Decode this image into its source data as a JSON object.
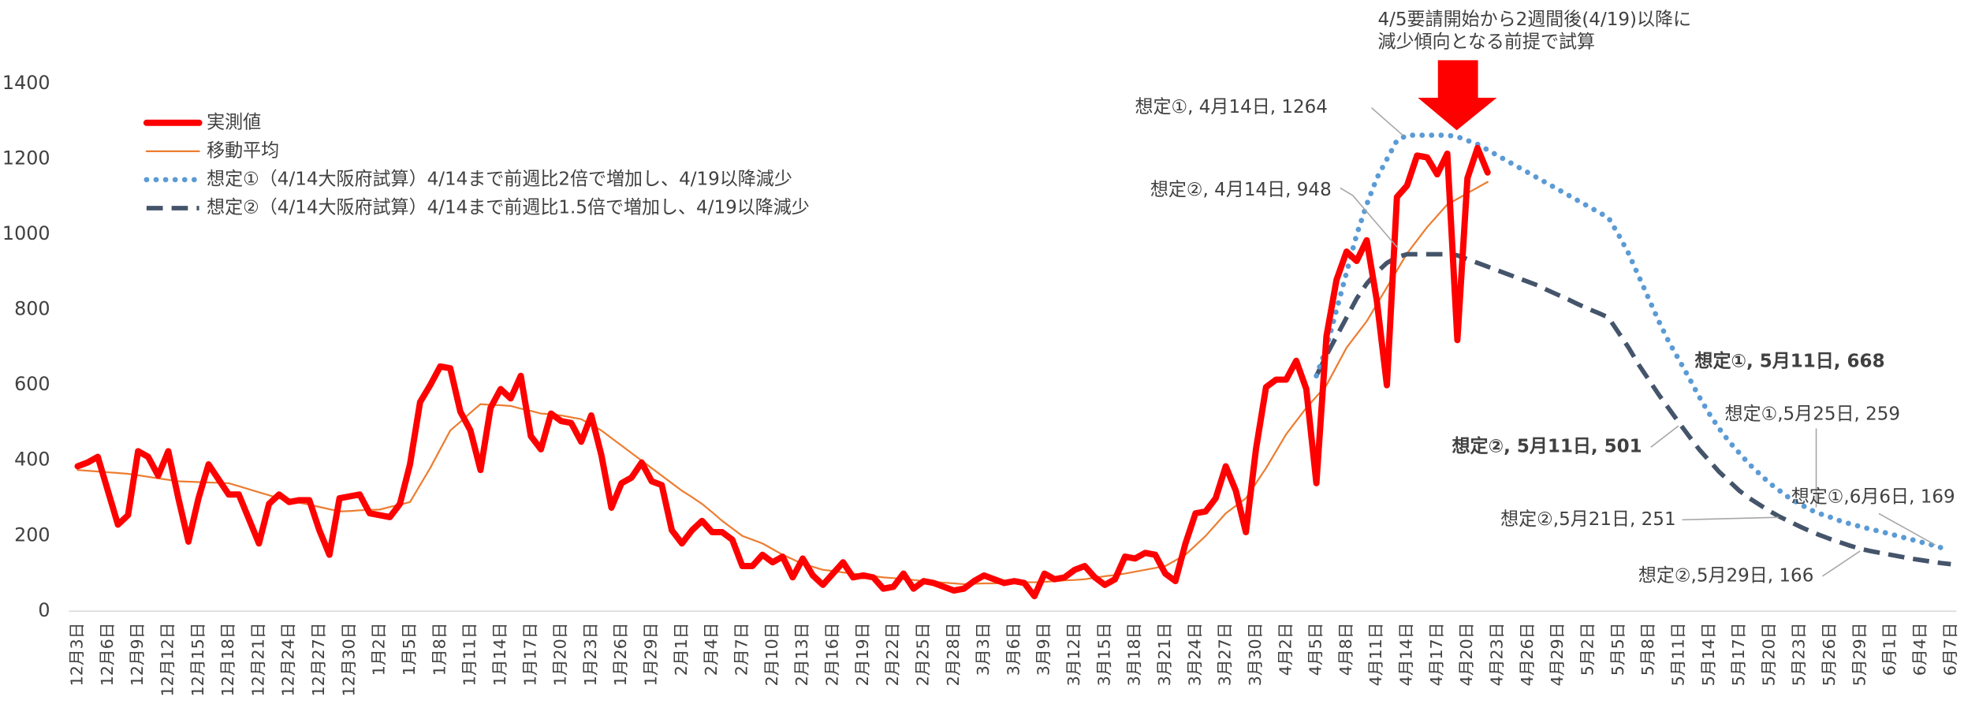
{
  "chart_data": {
    "type": "line",
    "categories": [
      "12月3日",
      null,
      null,
      "12月6日",
      null,
      null,
      "12月9日",
      null,
      null,
      "12月12日",
      null,
      null,
      "12月15日",
      null,
      null,
      "12月18日",
      null,
      null,
      "12月21日",
      null,
      null,
      "12月24日",
      null,
      null,
      "12月27日",
      null,
      null,
      "12月30日",
      null,
      null,
      "1月2日",
      null,
      null,
      "1月5日",
      null,
      null,
      "1月8日",
      null,
      null,
      "1月11日",
      null,
      null,
      "1月14日",
      null,
      null,
      "1月17日",
      null,
      null,
      "1月20日",
      null,
      null,
      "1月23日",
      null,
      null,
      "1月26日",
      null,
      null,
      "1月29日",
      null,
      null,
      "2月1日",
      null,
      null,
      "2月4日",
      null,
      null,
      "2月7日",
      null,
      null,
      "2月10日",
      null,
      null,
      "2月13日",
      null,
      null,
      "2月16日",
      null,
      null,
      "2月19日",
      null,
      null,
      "2月22日",
      null,
      null,
      "2月25日",
      null,
      null,
      "2月28日",
      null,
      null,
      "3月3日",
      null,
      null,
      "3月6日",
      null,
      null,
      "3月9日",
      null,
      null,
      "3月12日",
      null,
      null,
      "3月15日",
      null,
      null,
      "3月18日",
      null,
      null,
      "3月21日",
      null,
      null,
      "3月24日",
      null,
      null,
      "3月27日",
      null,
      null,
      "3月30日",
      null,
      null,
      "4月2日",
      null,
      null,
      "4月5日",
      null,
      null,
      "4月8日",
      null,
      null,
      "4月11日",
      null,
      null,
      "4月14日",
      null,
      null,
      "4月17日",
      null,
      null,
      "4月20日",
      null,
      null,
      "4月23日",
      null,
      null,
      "4月26日",
      null,
      null,
      "4月29日",
      null,
      null,
      "5月2日",
      null,
      null,
      "5月5日",
      null,
      null,
      "5月8日",
      null,
      null,
      "5月11日",
      null,
      null,
      "5月14日",
      null,
      null,
      "5月17日",
      null,
      null,
      "5月20日",
      null,
      null,
      "5月23日",
      null,
      null,
      "5月26日",
      null,
      null,
      "5月29日",
      null,
      null,
      "6月1日",
      null,
      null,
      "6月4日",
      null,
      null,
      "6月7日"
    ],
    "series": [
      {
        "name": "実測値",
        "color": "#ff0000",
        "line_style": "thick",
        "values": [
          385,
          395,
          410,
          320,
          230,
          255,
          425,
          410,
          360,
          425,
          300,
          185,
          300,
          390,
          350,
          310,
          310,
          245,
          180,
          285,
          310,
          290,
          295,
          295,
          215,
          150,
          300,
          305,
          310,
          260,
          255,
          250,
          285,
          390,
          555,
          600,
          650,
          645,
          530,
          480,
          375,
          540,
          590,
          565,
          625,
          465,
          430,
          525,
          505,
          500,
          450,
          520,
          415,
          275,
          340,
          355,
          395,
          345,
          335,
          215,
          180,
          215,
          240,
          210,
          210,
          190,
          120,
          120,
          150,
          130,
          145,
          90,
          140,
          95,
          70,
          100,
          130,
          90,
          95,
          90,
          60,
          65,
          100,
          60,
          80,
          75,
          65,
          55,
          60,
          80,
          95,
          85,
          75,
          80,
          75,
          40,
          100,
          85,
          90,
          110,
          120,
          90,
          70,
          85,
          145,
          140,
          155,
          150,
          100,
          80,
          180,
          260,
          265,
          300,
          385,
          320,
          210,
          430,
          595,
          615,
          615,
          665,
          590,
          340,
          730,
          880,
          955,
          930,
          985,
          825,
          600,
          1100,
          1130,
          1210,
          1205,
          1160,
          1215,
          720,
          1150,
          1230,
          1165,
          null,
          null,
          null,
          null,
          null,
          null,
          null,
          null,
          null,
          null,
          null,
          null,
          null,
          null,
          null,
          null,
          null,
          null,
          null,
          null,
          null,
          null,
          null,
          null,
          null,
          null,
          null,
          null,
          null,
          null,
          null,
          null,
          null,
          null,
          null,
          null,
          null,
          null,
          null,
          null,
          null,
          null,
          null,
          null,
          null,
          null
        ]
      },
      {
        "name": "移動平均",
        "color": "#ed7d31",
        "line_style": "thin",
        "values": [
          375,
          373,
          371,
          369,
          367,
          365,
          361,
          357,
          353,
          349,
          345,
          344,
          343,
          342,
          341,
          340,
          332,
          324,
          316,
          308,
          300,
          294,
          288,
          283,
          277,
          271,
          265,
          266,
          268,
          269,
          270,
          277,
          283,
          290,
          335,
          380,
          430,
          480,
          503,
          527,
          550,
          548,
          547,
          545,
          538,
          532,
          525,
          523,
          520,
          515,
          510,
          495,
          480,
          460,
          440,
          420,
          400,
          380,
          360,
          340,
          320,
          303,
          285,
          263,
          240,
          220,
          200,
          190,
          180,
          165,
          150,
          138,
          125,
          118,
          110,
          107,
          103,
          100,
          97,
          93,
          90,
          88,
          85,
          83,
          80,
          78,
          76,
          74,
          72,
          73,
          74,
          74,
          75,
          76,
          77,
          77,
          78,
          80,
          82,
          83,
          85,
          89,
          93,
          96,
          100,
          105,
          110,
          115,
          120,
          135,
          150,
          175,
          200,
          230,
          260,
          280,
          300,
          340,
          380,
          425,
          470,
          505,
          540,
          570,
          600,
          650,
          700,
          735,
          770,
          815,
          860,
          905,
          950,
          985,
          1020,
          1050,
          1080,
          1095,
          1110,
          1125,
          1140,
          null,
          null,
          null,
          null,
          null,
          null,
          null,
          null,
          null,
          null,
          null,
          null,
          null,
          null,
          null,
          null,
          null,
          null,
          null,
          null,
          null,
          null,
          null,
          null,
          null,
          null,
          null,
          null,
          null,
          null,
          null,
          null,
          null,
          null,
          null,
          null,
          null,
          null,
          null,
          null,
          null,
          null,
          null,
          null,
          null,
          null
        ]
      },
      {
        "name": "想定①（4/14大阪府試算）4/14まで前週比2倍で増加し、4/19以降減少",
        "color": "#5b9bd5",
        "line_style": "dotted",
        "values": [
          null,
          null,
          null,
          null,
          null,
          null,
          null,
          null,
          null,
          null,
          null,
          null,
          null,
          null,
          null,
          null,
          null,
          null,
          null,
          null,
          null,
          null,
          null,
          null,
          null,
          null,
          null,
          null,
          null,
          null,
          null,
          null,
          null,
          null,
          null,
          null,
          null,
          null,
          null,
          null,
          null,
          null,
          null,
          null,
          null,
          null,
          null,
          null,
          null,
          null,
          null,
          null,
          null,
          null,
          null,
          null,
          null,
          null,
          null,
          null,
          null,
          null,
          null,
          null,
          null,
          null,
          null,
          null,
          null,
          null,
          null,
          null,
          null,
          null,
          null,
          null,
          null,
          null,
          null,
          null,
          null,
          null,
          null,
          null,
          null,
          null,
          null,
          null,
          null,
          null,
          null,
          null,
          null,
          null,
          null,
          null,
          null,
          null,
          null,
          null,
          null,
          null,
          null,
          null,
          null,
          null,
          null,
          null,
          null,
          null,
          null,
          null,
          null,
          null,
          null,
          null,
          null,
          null,
          null,
          null,
          null,
          null,
          null,
          625,
          700,
          800,
          900,
          1000,
          1080,
          1150,
          1200,
          1250,
          1264,
          1264,
          1264,
          1264,
          1264,
          1260,
          1250,
          1240,
          1225,
          1210,
          1195,
          1180,
          1165,
          1150,
          1135,
          1120,
          1105,
          1090,
          1075,
          1060,
          1045,
          1000,
          950,
          890,
          830,
          770,
          715,
          668,
          620,
          570,
          525,
          485,
          450,
          420,
          390,
          365,
          340,
          320,
          300,
          285,
          270,
          259,
          250,
          240,
          232,
          225,
          218,
          212,
          205,
          198,
          191,
          184,
          177,
          169,
          null
        ]
      },
      {
        "name": "想定②（4/14大阪府試算）4/14まで前週比1.5倍で増加し、4/19以降減少",
        "color": "#44546a",
        "line_style": "dashed",
        "values": [
          null,
          null,
          null,
          null,
          null,
          null,
          null,
          null,
          null,
          null,
          null,
          null,
          null,
          null,
          null,
          null,
          null,
          null,
          null,
          null,
          null,
          null,
          null,
          null,
          null,
          null,
          null,
          null,
          null,
          null,
          null,
          null,
          null,
          null,
          null,
          null,
          null,
          null,
          null,
          null,
          null,
          null,
          null,
          null,
          null,
          null,
          null,
          null,
          null,
          null,
          null,
          null,
          null,
          null,
          null,
          null,
          null,
          null,
          null,
          null,
          null,
          null,
          null,
          null,
          null,
          null,
          null,
          null,
          null,
          null,
          null,
          null,
          null,
          null,
          null,
          null,
          null,
          null,
          null,
          null,
          null,
          null,
          null,
          null,
          null,
          null,
          null,
          null,
          null,
          null,
          null,
          null,
          null,
          null,
          null,
          null,
          null,
          null,
          null,
          null,
          null,
          null,
          null,
          null,
          null,
          null,
          null,
          null,
          null,
          null,
          null,
          null,
          null,
          null,
          null,
          null,
          null,
          null,
          null,
          null,
          null,
          null,
          null,
          625,
          680,
          730,
          780,
          830,
          870,
          900,
          925,
          940,
          948,
          948,
          948,
          948,
          948,
          945,
          935,
          925,
          915,
          905,
          895,
          885,
          875,
          865,
          852,
          840,
          828,
          815,
          803,
          792,
          780,
          740,
          700,
          655,
          615,
          575,
          538,
          501,
          465,
          430,
          400,
          370,
          345,
          320,
          300,
          283,
          266,
          251,
          238,
          225,
          213,
          202,
          192,
          183,
          174,
          166,
          160,
          155,
          150,
          145,
          140,
          136,
          132,
          128,
          125
        ]
      }
    ],
    "ylim": [
      0,
      1400
    ],
    "yticks": [
      0,
      200,
      400,
      600,
      800,
      1000,
      1200,
      1400
    ],
    "grid": false,
    "legend": "top-left",
    "note_lines": [
      "4/5要請開始から2週間後(4/19)以降に",
      "減少傾向となる前提で試算"
    ],
    "annotations": [
      "想定①, 4月14日, 1264",
      "想定②, 4月14日, 948",
      "想定①, 5月11日, 668",
      "想定②, 5月11日, 501",
      "想定①,5月25日, 259",
      "想定①,6月6日, 169",
      "想定②,5月21日, 251",
      "想定②,5月29日, 166"
    ]
  }
}
